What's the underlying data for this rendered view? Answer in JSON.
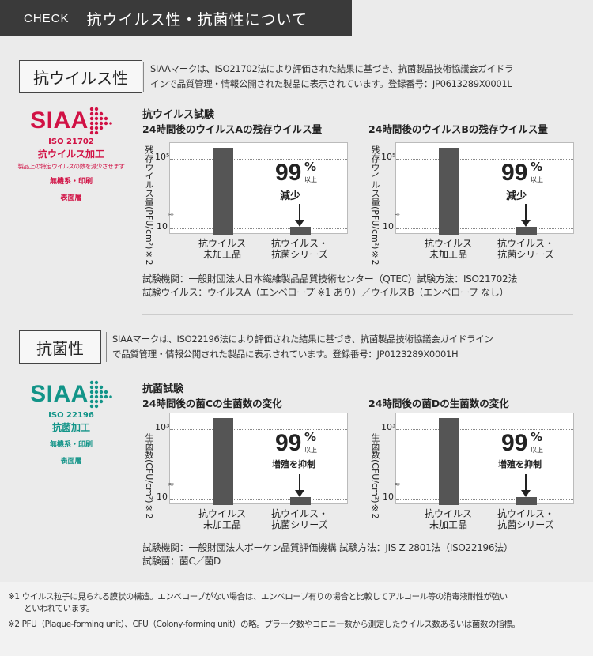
{
  "header": {
    "check": "CHECK",
    "title": "抗ウイルス性・抗菌性について"
  },
  "virus": {
    "label": "抗ウイルス性",
    "desc1": "SIAAマークは、ISO21702法により評価された結果に基づき、抗菌製品技術協議会ガイドラ",
    "desc2": "インで品質管理・情報公開された製品に表示されています。登録番号：JP0613289X0001L",
    "siaa": {
      "logo": "SIAA",
      "iso": "ISO 21702",
      "kakou": "抗ウイルス加工",
      "note": "製品上の特定ウイルスの数を減少させます",
      "material": "無機系・印刷",
      "layer": "表面層",
      "color": "#d11245"
    },
    "test_title": "抗ウイルス試験",
    "info1": "試験機関：一般財団法人日本繊維製品品質技術センター（QTEC）試験方法：ISO21702法",
    "info2": "試験ウイルス：ウイルスA（エンベロープ ※1 あり）／ウイルスB（エンベロープ なし）"
  },
  "bacteria": {
    "label": "抗菌性",
    "desc1": "SIAAマークは、ISO22196法により評価された結果に基づき、抗菌製品技術協議会ガイドライン",
    "desc2": "で品質管理・情報公開された製品に表示されています。登録番号：JP0123289X0001H",
    "siaa": {
      "logo": "SIAA",
      "iso": "ISO 22196",
      "kakou": "抗菌加工",
      "material": "無機系・印刷",
      "layer": "表面層",
      "color": "#129488"
    },
    "test_title": "抗菌試験",
    "info1": "試験機関：一般財団法人ボーケン品質評価機構 試験方法：JIS Z 2801法（ISO22196法）",
    "info2": "試験菌：菌C／菌D"
  },
  "chart_data": [
    {
      "type": "bar",
      "title": "24時間後のウイルスAの残存ウイルス量",
      "ylabel": "残存ウイルス量(PFU/cm²)※2",
      "yscale": "log",
      "yticks": [
        "10⁵",
        "10"
      ],
      "categories": [
        "抗ウイルス 未加工品",
        "抗ウイルス・抗菌シリーズ"
      ],
      "values": [
        100000,
        10
      ],
      "annotation": {
        "pct": "99",
        "sign": "%",
        "ijo": "以上",
        "effect": "減少"
      }
    },
    {
      "type": "bar",
      "title": "24時間後のウイルスBの残存ウイルス量",
      "ylabel": "残存ウイルス量(PFU/cm²)※2",
      "yscale": "log",
      "yticks": [
        "10⁵",
        "10"
      ],
      "categories": [
        "抗ウイルス 未加工品",
        "抗ウイルス・抗菌シリーズ"
      ],
      "values": [
        100000,
        10
      ],
      "annotation": {
        "pct": "99",
        "sign": "%",
        "ijo": "以上",
        "effect": "減少"
      }
    },
    {
      "type": "bar",
      "title": "24時間後の菌Cの生菌数の変化",
      "ylabel": "生菌数(CFU/cm²)※2",
      "yscale": "log",
      "yticks": [
        "10³",
        "10"
      ],
      "categories": [
        "抗ウイルス 未加工品",
        "抗ウイルス・抗菌シリーズ"
      ],
      "values": [
        1000,
        10
      ],
      "annotation": {
        "pct": "99",
        "sign": "%",
        "ijo": "以上",
        "effect": "増殖を抑制"
      }
    },
    {
      "type": "bar",
      "title": "24時間後の菌Dの生菌数の変化",
      "ylabel": "生菌数(CFU/cm²)※2",
      "yscale": "log",
      "yticks": [
        "10³",
        "10"
      ],
      "categories": [
        "抗ウイルス 未加工品",
        "抗ウイルス・抗菌シリーズ"
      ],
      "values": [
        1000,
        10
      ],
      "annotation": {
        "pct": "99",
        "sign": "%",
        "ijo": "以上",
        "effect": "増殖を抑制"
      }
    }
  ],
  "footnotes": {
    "n1a": "※1 ウイルス粒子に見られる膜状の構造。エンベロープがない場合は、エンベロープ有りの場合と比較してアルコール等の消毒液耐性が強い",
    "n1b": "といわれています。",
    "n2": "※2 PFU（Plaque-forming unit）、CFU（Colony-forming unit）の略。プラーク数やコロニー数から測定したウイルス数あるいは菌数の指標。"
  }
}
